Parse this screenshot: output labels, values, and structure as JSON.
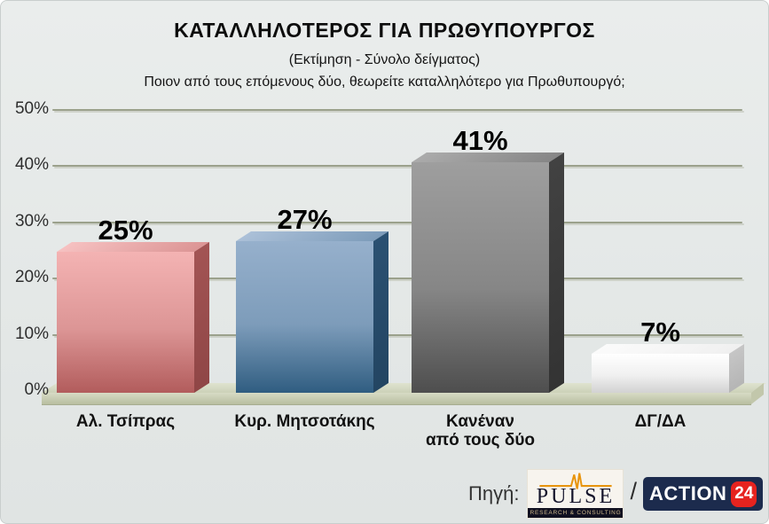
{
  "header": {
    "title": "ΚΑΤΑΛΛΗΛΟΤΕΡΟΣ ΓΙΑ ΠΡΩΘΥΠΟΥΡΓΟΣ",
    "subtitle": "(Εκτίμηση - Σύνολο δείγματος)",
    "question": "Ποιον από τους επόμενους δύο, θεωρείτε καταλληλότερο για Πρωθυπουργό;"
  },
  "chart_data": {
    "type": "bar",
    "title": "ΚΑΤΑΛΛΗΛΟΤΕΡΟΣ ΓΙΑ ΠΡΩΘΥΠΟΥΡΓΟΣ",
    "categories": [
      "Αλ. Τσίπρας",
      "Κυρ. Μητσοτάκης",
      "Κανέναν\nαπό τους δύο",
      "ΔΓ/ΔΑ"
    ],
    "values": [
      25,
      27,
      41,
      7
    ],
    "value_labels": [
      "25%",
      "27%",
      "41%",
      "7%"
    ],
    "ylim": [
      0,
      50
    ],
    "yticks": [
      "50%",
      "40%",
      "30%",
      "20%",
      "10%",
      "0%"
    ],
    "grid": true,
    "legend_position": "none",
    "bar_colors": [
      {
        "light": "#f4b3b3",
        "mid": "#dc9595",
        "dark": "#b25c5c",
        "top": "#f6c1c1",
        "side": "#a35454",
        "side_dark": "#8f4646"
      },
      {
        "light": "#96b0cc",
        "mid": "#7d9cba",
        "dark": "#305d81",
        "top": "#abc0d8",
        "side": "#2b5172",
        "side_dark": "#234562"
      },
      {
        "light": "#9e9e9e",
        "mid": "#868686",
        "dark": "#4e4e4e",
        "top": "#ababab",
        "side": "#424242",
        "side_dark": "#333333"
      },
      {
        "light": "#ffffff",
        "mid": "#f0f0f0",
        "dark": "#d2d2d2",
        "top": "#fbfbfb",
        "side": "#c6c6c6",
        "side_dark": "#b5b5b5"
      }
    ]
  },
  "source": {
    "label": "Πηγή:",
    "separator": "/",
    "pulse": {
      "name": "PULSE",
      "tagline": "RESEARCH & CONSULTING",
      "accent_color": "#e8950f"
    },
    "action24": {
      "text": "ACTION",
      "badge": "24",
      "bg_color": "#1c2b4d",
      "badge_color": "#e6231f"
    }
  }
}
